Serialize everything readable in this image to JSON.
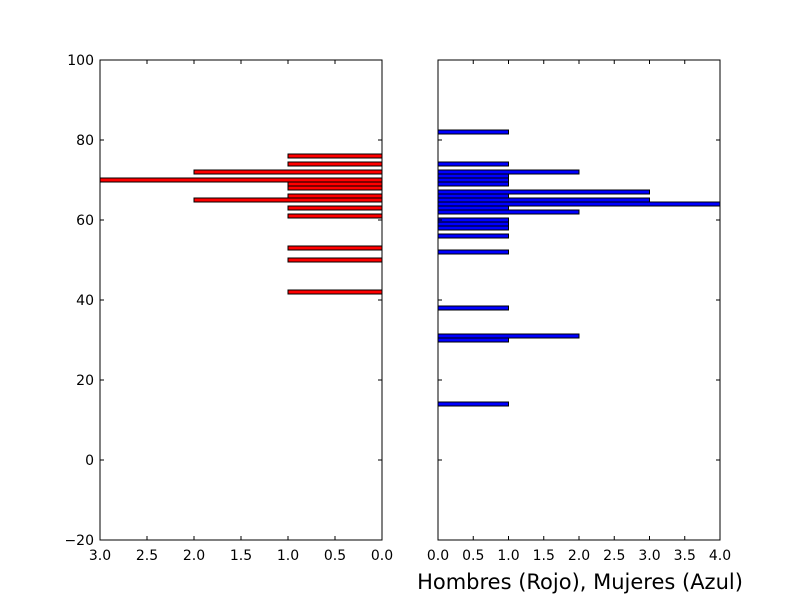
{
  "chart_data": {
    "type": "bar",
    "orientation": "horizontal",
    "shared_axis_label": "Hombres (Rojo), Mujeres (Azul)",
    "y_axis": {
      "ylim": [
        -20,
        100
      ],
      "ticks": [
        -20,
        0,
        20,
        40,
        60,
        80,
        100
      ],
      "tick_labels": [
        "−20",
        "0",
        "20",
        "40",
        "60",
        "80",
        "100"
      ]
    },
    "bar_height": 1,
    "panels": [
      {
        "name": "Hombres (Rojo)",
        "color": "#ff0000",
        "x_inverted": true,
        "xlim": [
          3.0,
          0.0
        ],
        "x_ticks": [
          3.0,
          2.5,
          2.0,
          1.5,
          1.0,
          0.5,
          0.0
        ],
        "x_tick_labels": [
          "3.0",
          "2.5",
          "2.0",
          "1.5",
          "1.0",
          "0.5",
          "0.0"
        ],
        "bars": [
          {
            "y": 42,
            "value": 1
          },
          {
            "y": 50,
            "value": 1
          },
          {
            "y": 53,
            "value": 1
          },
          {
            "y": 61,
            "value": 1
          },
          {
            "y": 63,
            "value": 1
          },
          {
            "y": 65,
            "value": 2
          },
          {
            "y": 66,
            "value": 1
          },
          {
            "y": 68,
            "value": 1
          },
          {
            "y": 69,
            "value": 1
          },
          {
            "y": 70,
            "value": 3
          },
          {
            "y": 72,
            "value": 2
          },
          {
            "y": 74,
            "value": 1
          },
          {
            "y": 76,
            "value": 1
          }
        ]
      },
      {
        "name": "Mujeres (Azul)",
        "color": "#0000ff",
        "x_inverted": false,
        "xlim": [
          0.0,
          4.0
        ],
        "x_ticks": [
          0.0,
          0.5,
          1.0,
          1.5,
          2.0,
          2.5,
          3.0,
          3.5,
          4.0
        ],
        "x_tick_labels": [
          "0.0",
          "0.5",
          "1.0",
          "1.5",
          "2.0",
          "2.5",
          "3.0",
          "3.5",
          "4.0"
        ],
        "bars": [
          {
            "y": 14,
            "value": 1
          },
          {
            "y": 30,
            "value": 1
          },
          {
            "y": 31,
            "value": 2
          },
          {
            "y": 38,
            "value": 1
          },
          {
            "y": 52,
            "value": 1
          },
          {
            "y": 56,
            "value": 1
          },
          {
            "y": 58,
            "value": 1
          },
          {
            "y": 59,
            "value": 1
          },
          {
            "y": 60,
            "value": 1
          },
          {
            "y": 62,
            "value": 2
          },
          {
            "y": 63,
            "value": 1
          },
          {
            "y": 64,
            "value": 4
          },
          {
            "y": 65,
            "value": 3
          },
          {
            "y": 66,
            "value": 1
          },
          {
            "y": 67,
            "value": 3
          },
          {
            "y": 69,
            "value": 1
          },
          {
            "y": 70,
            "value": 1
          },
          {
            "y": 71,
            "value": 1
          },
          {
            "y": 72,
            "value": 2
          },
          {
            "y": 74,
            "value": 1
          },
          {
            "y": 82,
            "value": 1
          }
        ]
      }
    ]
  }
}
